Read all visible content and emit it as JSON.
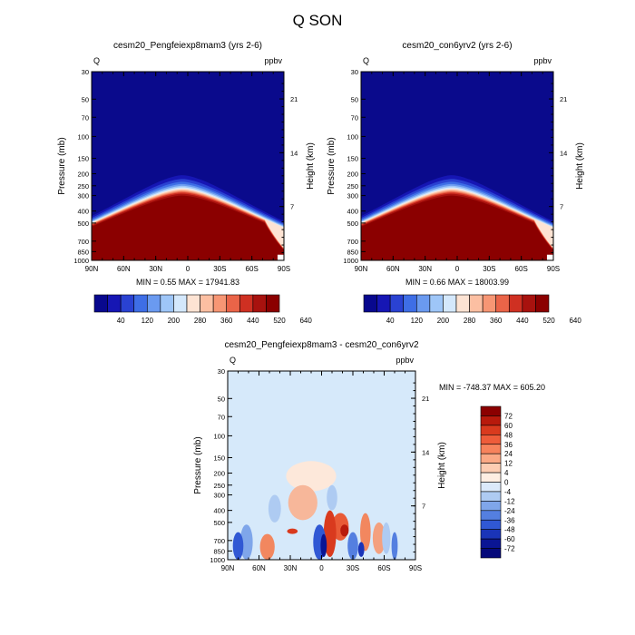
{
  "page_title": "Q SON",
  "colors": {
    "deep_blue": "#0a0a8c",
    "deep_red": "#8b0000",
    "light_blue_bg": "#d6e9fa",
    "frame": "#000000"
  },
  "chart_data": [
    {
      "type": "heatmap",
      "title": "cesm20_Pengfeiexp8mam3 (yrs 2-6)",
      "left_label": "Q",
      "right_label": "ppbv",
      "ylabel": "Pressure (mb)",
      "y2label": "Height (km)",
      "x_ticks": [
        "90N",
        "60N",
        "30N",
        "0",
        "30S",
        "60S",
        "90S"
      ],
      "y_ticks": [
        "30",
        "50",
        "70",
        "100",
        "150",
        "200",
        "250",
        "300",
        "400",
        "500",
        "700",
        "850",
        "1000"
      ],
      "y2_ticks": [
        "21",
        "14",
        "7"
      ],
      "stats": "MIN =   0.55  MAX = 17941.83",
      "colorbar_labels": [
        "40",
        "120",
        "200",
        "280",
        "360",
        "440",
        "520",
        "640"
      ],
      "colorbar_colors": [
        "#08088e",
        "#1616b4",
        "#2a42d2",
        "#3e6ee6",
        "#6a9af0",
        "#9ec6f8",
        "#d4e8fc",
        "#fde3d3",
        "#fcbfa2",
        "#f79674",
        "#ea6448",
        "#cf3022",
        "#a8120e",
        "#8b0000"
      ],
      "xlim": [
        90,
        -90
      ],
      "ylim": [
        1000,
        30
      ]
    },
    {
      "type": "heatmap",
      "title": "cesm20_con6yrv2 (yrs 2-6)",
      "left_label": "Q",
      "right_label": "ppbv",
      "ylabel": "Pressure (mb)",
      "y2label": "Height (km)",
      "x_ticks": [
        "90N",
        "60N",
        "30N",
        "0",
        "30S",
        "60S",
        "90S"
      ],
      "y_ticks": [
        "30",
        "50",
        "70",
        "100",
        "150",
        "200",
        "250",
        "300",
        "400",
        "500",
        "700",
        "850",
        "1000"
      ],
      "y2_ticks": [
        "21",
        "14",
        "7"
      ],
      "stats": "MIN =   0.66  MAX = 18003.99",
      "colorbar_labels": [
        "40",
        "120",
        "200",
        "280",
        "360",
        "440",
        "520",
        "640"
      ],
      "colorbar_colors": [
        "#08088e",
        "#1616b4",
        "#2a42d2",
        "#3e6ee6",
        "#6a9af0",
        "#9ec6f8",
        "#d4e8fc",
        "#fde3d3",
        "#fcbfa2",
        "#f79674",
        "#ea6448",
        "#cf3022",
        "#a8120e",
        "#8b0000"
      ],
      "xlim": [
        90,
        -90
      ],
      "ylim": [
        1000,
        30
      ]
    },
    {
      "type": "heatmap",
      "title": "cesm20_Pengfeiexp8mam3 - cesm20_con6yrv2",
      "left_label": "Q",
      "right_label": "ppbv",
      "ylabel": "Pressure (mb)",
      "y2label": "Height (km)",
      "x_ticks": [
        "90N",
        "60N",
        "30N",
        "0",
        "30S",
        "60S",
        "90S"
      ],
      "y_ticks": [
        "30",
        "50",
        "70",
        "100",
        "150",
        "200",
        "250",
        "300",
        "400",
        "500",
        "700",
        "850",
        "1000"
      ],
      "y2_ticks": [
        "21",
        "14",
        "7"
      ],
      "stats": "MIN = -748.37  MAX = 605.20",
      "colorbar_labels": [
        "72",
        "60",
        "48",
        "36",
        "24",
        "12",
        "4",
        "0",
        "-4",
        "-12",
        "-24",
        "-36",
        "-48",
        "-60",
        "-72"
      ],
      "colorbar_colors": [
        "#8b0000",
        "#b81a0c",
        "#d93a1e",
        "#ee5c3a",
        "#f7835c",
        "#fba985",
        "#fdcdb2",
        "#feeee2",
        "#dbe9fa",
        "#aecbf2",
        "#7fa6ea",
        "#547fe0",
        "#3058d4",
        "#1a34b8",
        "#0a1594",
        "#05097a"
      ],
      "xlim": [
        90,
        -90
      ],
      "ylim": [
        1000,
        30
      ]
    }
  ]
}
